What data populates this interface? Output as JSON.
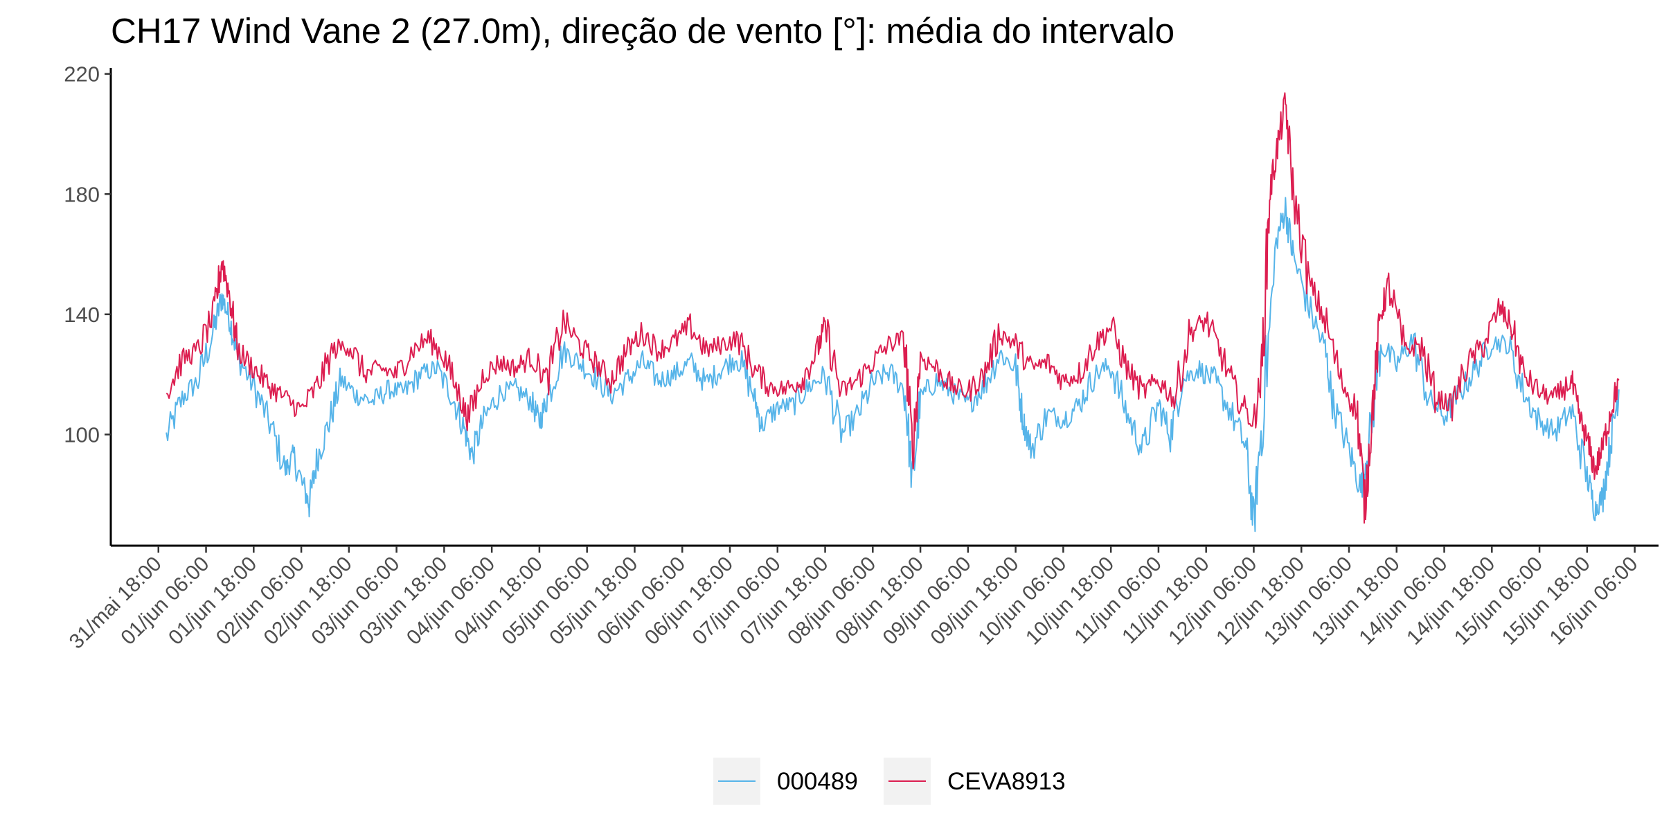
{
  "chart_data": {
    "type": "line",
    "title": "CH17 Wind Vane 2 (27.0m), direção de vento [°]: média do intervalo",
    "xlabel": "",
    "ylabel": "",
    "ylim": [
      63,
      222
    ],
    "yticks": [
      100,
      140,
      180,
      220
    ],
    "x_axis": {
      "range": [
        "2024-05-31T06:00",
        "2024-06-16T12:00"
      ],
      "ticks": [
        {
          "t": "2024-05-31T18:00",
          "label": "31/mai 18:00"
        },
        {
          "t": "2024-06-01T06:00",
          "label": "01/jun 06:00"
        },
        {
          "t": "2024-06-01T18:00",
          "label": "01/jun 18:00"
        },
        {
          "t": "2024-06-02T06:00",
          "label": "02/jun 06:00"
        },
        {
          "t": "2024-06-02T18:00",
          "label": "02/jun 18:00"
        },
        {
          "t": "2024-06-03T06:00",
          "label": "03/jun 06:00"
        },
        {
          "t": "2024-06-03T18:00",
          "label": "03/jun 18:00"
        },
        {
          "t": "2024-06-04T06:00",
          "label": "04/jun 06:00"
        },
        {
          "t": "2024-06-04T18:00",
          "label": "04/jun 18:00"
        },
        {
          "t": "2024-06-05T06:00",
          "label": "05/jun 06:00"
        },
        {
          "t": "2024-06-05T18:00",
          "label": "05/jun 18:00"
        },
        {
          "t": "2024-06-06T06:00",
          "label": "06/jun 06:00"
        },
        {
          "t": "2024-06-06T18:00",
          "label": "06/jun 18:00"
        },
        {
          "t": "2024-06-07T06:00",
          "label": "07/jun 06:00"
        },
        {
          "t": "2024-06-07T18:00",
          "label": "07/jun 18:00"
        },
        {
          "t": "2024-06-08T06:00",
          "label": "08/jun 06:00"
        },
        {
          "t": "2024-06-08T18:00",
          "label": "08/jun 18:00"
        },
        {
          "t": "2024-06-09T06:00",
          "label": "09/jun 06:00"
        },
        {
          "t": "2024-06-09T18:00",
          "label": "09/jun 18:00"
        },
        {
          "t": "2024-06-10T06:00",
          "label": "10/jun 06:00"
        },
        {
          "t": "2024-06-10T18:00",
          "label": "10/jun 18:00"
        },
        {
          "t": "2024-06-11T06:00",
          "label": "11/jun 06:00"
        },
        {
          "t": "2024-06-11T18:00",
          "label": "11/jun 18:00"
        },
        {
          "t": "2024-06-12T06:00",
          "label": "12/jun 06:00"
        },
        {
          "t": "2024-06-12T18:00",
          "label": "12/jun 18:00"
        },
        {
          "t": "2024-06-13T06:00",
          "label": "13/jun 06:00"
        },
        {
          "t": "2024-06-13T18:00",
          "label": "13/jun 18:00"
        },
        {
          "t": "2024-06-14T06:00",
          "label": "14/jun 06:00"
        },
        {
          "t": "2024-06-14T18:00",
          "label": "14/jun 18:00"
        },
        {
          "t": "2024-06-15T06:00",
          "label": "15/jun 06:00"
        },
        {
          "t": "2024-06-15T18:00",
          "label": "15/jun 18:00"
        },
        {
          "t": "2024-06-16T06:00",
          "label": "16/jun 06:00"
        }
      ]
    },
    "grid": false,
    "legend_position": "bottom",
    "series": [
      {
        "name": "000489",
        "color": "#56B4E9",
        "points": [
          [
            "2024-05-31T20:00",
            99
          ],
          [
            "2024-06-01T00:00",
            112
          ],
          [
            "2024-06-01T04:00",
            118
          ],
          [
            "2024-06-01T08:00",
            135
          ],
          [
            "2024-06-01T10:00",
            146
          ],
          [
            "2024-06-01T12:00",
            138
          ],
          [
            "2024-06-01T14:00",
            126
          ],
          [
            "2024-06-01T18:00",
            116
          ],
          [
            "2024-06-01T22:00",
            104
          ],
          [
            "2024-06-02T02:00",
            88
          ],
          [
            "2024-06-02T04:00",
            93
          ],
          [
            "2024-06-02T07:00",
            80
          ],
          [
            "2024-06-02T08:00",
            77
          ],
          [
            "2024-06-02T10:00",
            92
          ],
          [
            "2024-06-02T13:00",
            104
          ],
          [
            "2024-06-02T16:00",
            118
          ],
          [
            "2024-06-02T20:00",
            113
          ],
          [
            "2024-06-03T00:00",
            111
          ],
          [
            "2024-06-03T04:00",
            115
          ],
          [
            "2024-06-03T08:00",
            114
          ],
          [
            "2024-06-03T12:00",
            120
          ],
          [
            "2024-06-03T16:00",
            122
          ],
          [
            "2024-06-03T20:00",
            113
          ],
          [
            "2024-06-03T23:00",
            102
          ],
          [
            "2024-06-04T01:00",
            93
          ],
          [
            "2024-06-04T04:00",
            105
          ],
          [
            "2024-06-04T08:00",
            114
          ],
          [
            "2024-06-04T12:00",
            115
          ],
          [
            "2024-06-04T16:00",
            111
          ],
          [
            "2024-06-04T18:00",
            104
          ],
          [
            "2024-06-04T20:00",
            112
          ],
          [
            "2024-06-05T00:00",
            128
          ],
          [
            "2024-06-05T04:00",
            124
          ],
          [
            "2024-06-05T08:00",
            119
          ],
          [
            "2024-06-05T12:00",
            113
          ],
          [
            "2024-06-05T16:00",
            118
          ],
          [
            "2024-06-05T20:00",
            124
          ],
          [
            "2024-06-06T00:00",
            118
          ],
          [
            "2024-06-06T04:00",
            120
          ],
          [
            "2024-06-06T08:00",
            124
          ],
          [
            "2024-06-06T12:00",
            117
          ],
          [
            "2024-06-06T16:00",
            122
          ],
          [
            "2024-06-06T20:00",
            126
          ],
          [
            "2024-06-07T00:00",
            113
          ],
          [
            "2024-06-07T02:00",
            103
          ],
          [
            "2024-06-07T06:00",
            109
          ],
          [
            "2024-06-07T10:00",
            110
          ],
          [
            "2024-06-07T14:00",
            116
          ],
          [
            "2024-06-07T18:00",
            120
          ],
          [
            "2024-06-07T22:00",
            100
          ],
          [
            "2024-06-08T02:00",
            106
          ],
          [
            "2024-06-08T06:00",
            117
          ],
          [
            "2024-06-08T10:00",
            121
          ],
          [
            "2024-06-08T14:00",
            115
          ],
          [
            "2024-06-08T16:00",
            84
          ],
          [
            "2024-06-08T18:00",
            112
          ],
          [
            "2024-06-08T22:00",
            118
          ],
          [
            "2024-06-09T02:00",
            114
          ],
          [
            "2024-06-09T06:00",
            110
          ],
          [
            "2024-06-09T10:00",
            116
          ],
          [
            "2024-06-09T14:00",
            127
          ],
          [
            "2024-06-09T18:00",
            122
          ],
          [
            "2024-06-09T20:00",
            104
          ],
          [
            "2024-06-09T22:00",
            95
          ],
          [
            "2024-06-10T02:00",
            107
          ],
          [
            "2024-06-10T06:00",
            105
          ],
          [
            "2024-06-10T10:00",
            110
          ],
          [
            "2024-06-10T14:00",
            120
          ],
          [
            "2024-06-10T18:00",
            123
          ],
          [
            "2024-06-10T22:00",
            107
          ],
          [
            "2024-06-11T02:00",
            95
          ],
          [
            "2024-06-11T06:00",
            110
          ],
          [
            "2024-06-11T09:00",
            100
          ],
          [
            "2024-06-11T12:00",
            118
          ],
          [
            "2024-06-11T16:00",
            122
          ],
          [
            "2024-06-11T20:00",
            118
          ],
          [
            "2024-06-12T00:00",
            108
          ],
          [
            "2024-06-12T04:00",
            96
          ],
          [
            "2024-06-12T06:00",
            70
          ],
          [
            "2024-06-12T08:00",
            104
          ],
          [
            "2024-06-12T12:00",
            166
          ],
          [
            "2024-06-12T14:00",
            175
          ],
          [
            "2024-06-12T16:00",
            159
          ],
          [
            "2024-06-12T20:00",
            142
          ],
          [
            "2024-06-13T00:00",
            128
          ],
          [
            "2024-06-13T02:00",
            110
          ],
          [
            "2024-06-13T06:00",
            95
          ],
          [
            "2024-06-13T09:00",
            82
          ],
          [
            "2024-06-13T11:00",
            96
          ],
          [
            "2024-06-13T14:00",
            130
          ],
          [
            "2024-06-13T18:00",
            123
          ],
          [
            "2024-06-13T22:00",
            132
          ],
          [
            "2024-06-14T02:00",
            112
          ],
          [
            "2024-06-14T06:00",
            106
          ],
          [
            "2024-06-14T10:00",
            114
          ],
          [
            "2024-06-14T14:00",
            122
          ],
          [
            "2024-06-14T18:00",
            131
          ],
          [
            "2024-06-14T22:00",
            130
          ],
          [
            "2024-06-15T02:00",
            114
          ],
          [
            "2024-06-15T06:00",
            104
          ],
          [
            "2024-06-15T10:00",
            101
          ],
          [
            "2024-06-15T14:00",
            108
          ],
          [
            "2024-06-15T18:00",
            86
          ],
          [
            "2024-06-15T20:00",
            75
          ],
          [
            "2024-06-15T22:00",
            80
          ],
          [
            "2024-06-16T00:00",
            98
          ],
          [
            "2024-06-16T02:00",
            115
          ]
        ]
      },
      {
        "name": "CEVA8913",
        "color": "#DC1E50",
        "points": [
          [
            "2024-05-31T20:00",
            114
          ],
          [
            "2024-06-01T00:00",
            125
          ],
          [
            "2024-06-01T04:00",
            128
          ],
          [
            "2024-06-01T08:00",
            140
          ],
          [
            "2024-06-01T10:00",
            158
          ],
          [
            "2024-06-01T12:00",
            146
          ],
          [
            "2024-06-01T14:00",
            128
          ],
          [
            "2024-06-01T18:00",
            122
          ],
          [
            "2024-06-01T22:00",
            116
          ],
          [
            "2024-06-02T02:00",
            112
          ],
          [
            "2024-06-02T06:00",
            108
          ],
          [
            "2024-06-02T10:00",
            116
          ],
          [
            "2024-06-02T14:00",
            128
          ],
          [
            "2024-06-02T18:00",
            130
          ],
          [
            "2024-06-02T22:00",
            120
          ],
          [
            "2024-06-03T02:00",
            122
          ],
          [
            "2024-06-03T06:00",
            120
          ],
          [
            "2024-06-03T10:00",
            128
          ],
          [
            "2024-06-03T14:00",
            132
          ],
          [
            "2024-06-03T18:00",
            126
          ],
          [
            "2024-06-03T22:00",
            112
          ],
          [
            "2024-06-04T00:00",
            105
          ],
          [
            "2024-06-04T04:00",
            120
          ],
          [
            "2024-06-04T08:00",
            124
          ],
          [
            "2024-06-04T12:00",
            122
          ],
          [
            "2024-06-04T16:00",
            126
          ],
          [
            "2024-06-04T20:00",
            118
          ],
          [
            "2024-06-05T00:00",
            138
          ],
          [
            "2024-06-05T04:00",
            130
          ],
          [
            "2024-06-05T08:00",
            124
          ],
          [
            "2024-06-05T12:00",
            118
          ],
          [
            "2024-06-05T16:00",
            128
          ],
          [
            "2024-06-05T20:00",
            134
          ],
          [
            "2024-06-06T00:00",
            128
          ],
          [
            "2024-06-06T04:00",
            131
          ],
          [
            "2024-06-06T08:00",
            136
          ],
          [
            "2024-06-06T12:00",
            128
          ],
          [
            "2024-06-06T16:00",
            130
          ],
          [
            "2024-06-06T20:00",
            132
          ],
          [
            "2024-06-07T00:00",
            122
          ],
          [
            "2024-06-07T04:00",
            116
          ],
          [
            "2024-06-07T08:00",
            115
          ],
          [
            "2024-06-07T12:00",
            118
          ],
          [
            "2024-06-07T16:00",
            128
          ],
          [
            "2024-06-07T18:00",
            136
          ],
          [
            "2024-06-07T22:00",
            114
          ],
          [
            "2024-06-08T02:00",
            118
          ],
          [
            "2024-06-08T06:00",
            124
          ],
          [
            "2024-06-08T10:00",
            130
          ],
          [
            "2024-06-08T14:00",
            132
          ],
          [
            "2024-06-08T16:00",
            94
          ],
          [
            "2024-06-08T18:00",
            126
          ],
          [
            "2024-06-08T22:00",
            122
          ],
          [
            "2024-06-09T02:00",
            116
          ],
          [
            "2024-06-09T06:00",
            114
          ],
          [
            "2024-06-09T10:00",
            120
          ],
          [
            "2024-06-09T14:00",
            134
          ],
          [
            "2024-06-09T18:00",
            130
          ],
          [
            "2024-06-09T22:00",
            122
          ],
          [
            "2024-06-10T02:00",
            124
          ],
          [
            "2024-06-10T06:00",
            118
          ],
          [
            "2024-06-10T10:00",
            120
          ],
          [
            "2024-06-10T14:00",
            130
          ],
          [
            "2024-06-10T18:00",
            136
          ],
          [
            "2024-06-10T22:00",
            122
          ],
          [
            "2024-06-11T02:00",
            114
          ],
          [
            "2024-06-11T06:00",
            118
          ],
          [
            "2024-06-11T10:00",
            112
          ],
          [
            "2024-06-11T14:00",
            134
          ],
          [
            "2024-06-11T18:00",
            138
          ],
          [
            "2024-06-11T22:00",
            126
          ],
          [
            "2024-06-12T02:00",
            112
          ],
          [
            "2024-06-12T06:00",
            104
          ],
          [
            "2024-06-12T08:00",
            120
          ],
          [
            "2024-06-12T10:00",
            180
          ],
          [
            "2024-06-12T12:00",
            196
          ],
          [
            "2024-06-12T14:00",
            210
          ],
          [
            "2024-06-12T16:00",
            180
          ],
          [
            "2024-06-12T20:00",
            150
          ],
          [
            "2024-06-13T00:00",
            138
          ],
          [
            "2024-06-13T04:00",
            118
          ],
          [
            "2024-06-13T08:00",
            108
          ],
          [
            "2024-06-13T10:00",
            76
          ],
          [
            "2024-06-13T12:00",
            110
          ],
          [
            "2024-06-13T14:00",
            140
          ],
          [
            "2024-06-13T16:00",
            150
          ],
          [
            "2024-06-13T20:00",
            128
          ],
          [
            "2024-06-14T00:00",
            130
          ],
          [
            "2024-06-14T04:00",
            112
          ],
          [
            "2024-06-14T08:00",
            110
          ],
          [
            "2024-06-14T12:00",
            124
          ],
          [
            "2024-06-14T16:00",
            130
          ],
          [
            "2024-06-14T20:00",
            142
          ],
          [
            "2024-06-14T23:00",
            136
          ],
          [
            "2024-06-15T02:00",
            120
          ],
          [
            "2024-06-15T06:00",
            114
          ],
          [
            "2024-06-15T10:00",
            112
          ],
          [
            "2024-06-15T14:00",
            118
          ],
          [
            "2024-06-15T16:00",
            106
          ],
          [
            "2024-06-15T18:00",
            98
          ],
          [
            "2024-06-15T20:00",
            88
          ],
          [
            "2024-06-15T22:00",
            96
          ],
          [
            "2024-06-16T00:00",
            108
          ],
          [
            "2024-06-16T02:00",
            118
          ]
        ]
      }
    ]
  }
}
